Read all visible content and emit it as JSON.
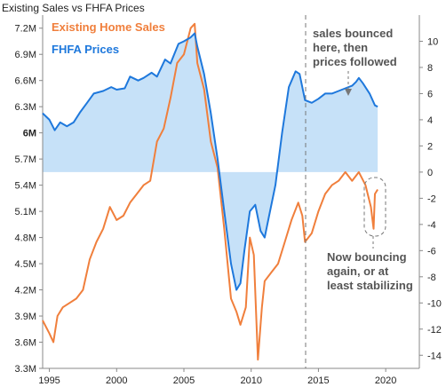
{
  "chart_data": {
    "type": "line",
    "title": "Existing Sales vs FHFA Prices",
    "x_range": [
      1994.5,
      2022.5
    ],
    "x_ticks": [
      "1995",
      "2000",
      "2005",
      "2010",
      "2015",
      "2020"
    ],
    "y_left": {
      "range": [
        3.3,
        7.35
      ],
      "ticks": [
        "3.3M",
        "3.6M",
        "3.9M",
        "4.2M",
        "4.5M",
        "4.8M",
        "5.1M",
        "5.4M",
        "5.7M",
        "6M",
        "6.3M",
        "6.6M",
        "6.9M",
        "7.2M"
      ]
    },
    "y_right": {
      "range": [
        -15,
        12
      ],
      "ticks": [
        "-14",
        "-12",
        "-10",
        "-8",
        "-6",
        "-4",
        "-2",
        "0",
        "2",
        "4",
        "6",
        "8",
        "10"
      ]
    },
    "series": [
      {
        "name": "Existing Home Sales",
        "axis": "left",
        "color": "#f07f3c",
        "points": [
          [
            1994.5,
            3.85
          ],
          [
            1995.0,
            3.7
          ],
          [
            1995.3,
            3.6
          ],
          [
            1995.6,
            3.9
          ],
          [
            1996.0,
            4.0
          ],
          [
            1996.5,
            4.05
          ],
          [
            1997.0,
            4.1
          ],
          [
            1997.5,
            4.2
          ],
          [
            1998.0,
            4.55
          ],
          [
            1998.5,
            4.75
          ],
          [
            1999.0,
            4.9
          ],
          [
            1999.5,
            5.15
          ],
          [
            2000.0,
            5.0
          ],
          [
            2000.5,
            5.05
          ],
          [
            2001.0,
            5.2
          ],
          [
            2001.5,
            5.3
          ],
          [
            2002.0,
            5.4
          ],
          [
            2002.5,
            5.45
          ],
          [
            2003.0,
            5.9
          ],
          [
            2003.5,
            6.05
          ],
          [
            2004.0,
            6.4
          ],
          [
            2004.5,
            6.8
          ],
          [
            2005.0,
            6.9
          ],
          [
            2005.5,
            7.2
          ],
          [
            2005.8,
            7.25
          ],
          [
            2006.0,
            6.8
          ],
          [
            2006.5,
            6.5
          ],
          [
            2007.0,
            5.9
          ],
          [
            2007.5,
            5.6
          ],
          [
            2008.0,
            4.9
          ],
          [
            2008.5,
            4.1
          ],
          [
            2008.9,
            3.95
          ],
          [
            2009.2,
            3.8
          ],
          [
            2009.6,
            4.0
          ],
          [
            2009.9,
            4.8
          ],
          [
            2010.2,
            4.6
          ],
          [
            2010.5,
            3.4
          ],
          [
            2010.8,
            4.0
          ],
          [
            2011.0,
            4.3
          ],
          [
            2011.5,
            4.4
          ],
          [
            2012.0,
            4.5
          ],
          [
            2012.5,
            4.75
          ],
          [
            2013.0,
            5.0
          ],
          [
            2013.5,
            5.2
          ],
          [
            2013.8,
            5.05
          ],
          [
            2014.0,
            4.75
          ],
          [
            2014.5,
            4.85
          ],
          [
            2015.0,
            5.1
          ],
          [
            2015.5,
            5.3
          ],
          [
            2016.0,
            5.4
          ],
          [
            2016.5,
            5.45
          ],
          [
            2017.0,
            5.55
          ],
          [
            2017.5,
            5.45
          ],
          [
            2018.0,
            5.55
          ],
          [
            2018.5,
            5.4
          ],
          [
            2018.9,
            5.15
          ],
          [
            2019.1,
            4.9
          ],
          [
            2019.2,
            5.3
          ],
          [
            2019.4,
            5.35
          ]
        ]
      },
      {
        "name": "FHFA Prices",
        "axis": "right",
        "color": "#1e78dc",
        "points": [
          [
            1994.5,
            4.5
          ],
          [
            1995.0,
            4.0
          ],
          [
            1995.4,
            3.2
          ],
          [
            1995.8,
            3.8
          ],
          [
            1996.3,
            3.5
          ],
          [
            1996.8,
            3.8
          ],
          [
            1997.3,
            4.6
          ],
          [
            1997.8,
            5.3
          ],
          [
            1998.3,
            6.0
          ],
          [
            1999.0,
            6.2
          ],
          [
            1999.6,
            6.5
          ],
          [
            2000.0,
            6.3
          ],
          [
            2000.6,
            6.4
          ],
          [
            2001.0,
            7.3
          ],
          [
            2001.6,
            7.0
          ],
          [
            2002.0,
            7.2
          ],
          [
            2002.6,
            7.6
          ],
          [
            2003.0,
            7.3
          ],
          [
            2003.6,
            8.6
          ],
          [
            2004.0,
            8.3
          ],
          [
            2004.6,
            9.8
          ],
          [
            2005.0,
            10.0
          ],
          [
            2005.5,
            10.3
          ],
          [
            2005.8,
            10.6
          ],
          [
            2006.0,
            9.6
          ],
          [
            2006.5,
            7.5
          ],
          [
            2007.0,
            4.5
          ],
          [
            2007.5,
            1.0
          ],
          [
            2008.0,
            -3.0
          ],
          [
            2008.5,
            -7.0
          ],
          [
            2008.9,
            -9.0
          ],
          [
            2009.2,
            -8.5
          ],
          [
            2009.5,
            -6.0
          ],
          [
            2009.9,
            -3.0
          ],
          [
            2010.3,
            -2.5
          ],
          [
            2010.7,
            -4.5
          ],
          [
            2011.0,
            -5.0
          ],
          [
            2011.3,
            -3.5
          ],
          [
            2011.8,
            -1.0
          ],
          [
            2012.3,
            3.0
          ],
          [
            2012.8,
            6.5
          ],
          [
            2013.3,
            7.7
          ],
          [
            2013.6,
            7.5
          ],
          [
            2014.0,
            5.5
          ],
          [
            2014.5,
            5.3
          ],
          [
            2015.0,
            5.6
          ],
          [
            2015.5,
            6.0
          ],
          [
            2016.0,
            6.0
          ],
          [
            2016.5,
            6.2
          ],
          [
            2017.0,
            6.4
          ],
          [
            2017.5,
            6.6
          ],
          [
            2017.8,
            6.9
          ],
          [
            2018.0,
            7.2
          ],
          [
            2018.3,
            6.8
          ],
          [
            2018.8,
            6.0
          ],
          [
            2019.2,
            5.1
          ],
          [
            2019.4,
            5.0
          ]
        ]
      }
    ],
    "annotations": {
      "top": [
        "sales bounced",
        "here, then",
        "prices followed"
      ],
      "bottom": [
        "Now bouncing",
        "again, or at",
        "least stabilizing"
      ]
    },
    "colors": {
      "fill": "#bcdcf7",
      "annotation": "#555555",
      "axis": "#888888"
    }
  }
}
